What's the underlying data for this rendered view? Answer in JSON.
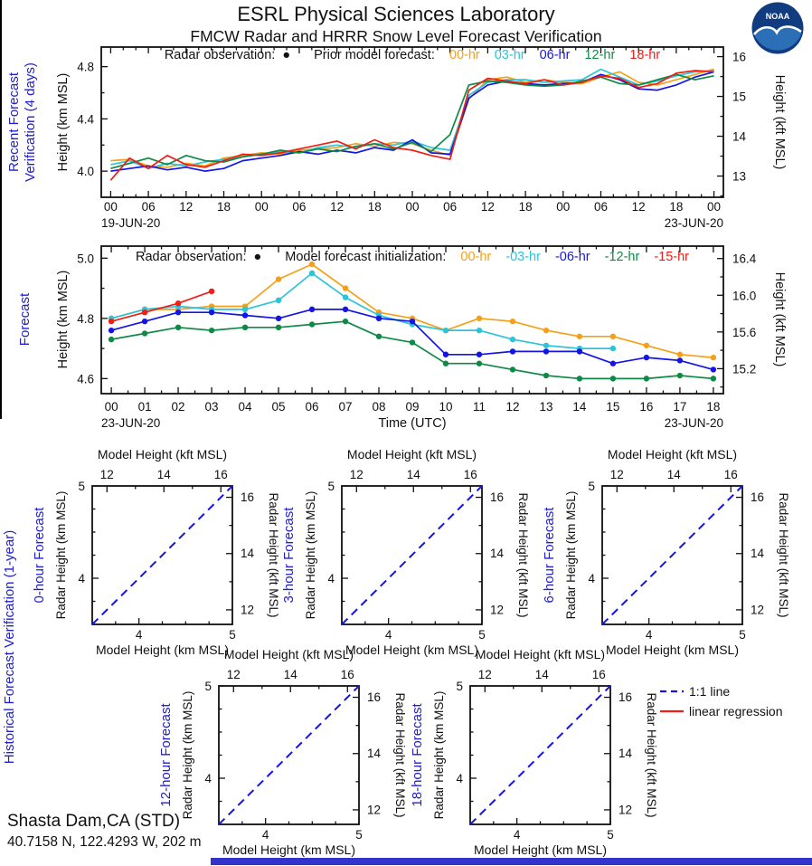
{
  "header": {
    "title": "ESRL Physical Sciences Laboratory",
    "subtitle": "FMCW Radar and HRRR Snow Level Forecast Verification"
  },
  "logo": {
    "text": "NOAA",
    "navy": "#123C80",
    "light_blue": "#2C6FB7"
  },
  "sections": {
    "historical": "Historical Forecast Verification (1-year)"
  },
  "station": {
    "name": "Shasta Dam,CA (STD)",
    "coords": "40.7158 N, 122.4293 W, 202 m"
  },
  "colors": {
    "orange": "#F5A01A",
    "cyan": "#2BC4D8",
    "blue": "#1414E6",
    "green": "#0F8A46",
    "red": "#F01E14",
    "label_blue": "#2020CC"
  },
  "scatter_legend": {
    "items": [
      {
        "label": "1:1 line",
        "color": "#1414E6",
        "dash": true
      },
      {
        "label": "linear regression",
        "color": "#F01E14",
        "dash": false
      }
    ]
  },
  "chart_data": [
    {
      "type": "line",
      "section_label_lines": [
        "Recent Forecast",
        "Verification (4 days)"
      ],
      "ylabel": "Height (km MSL)",
      "right_ylabel": "Height (kft MSL)",
      "ylim": [
        3.8,
        4.95
      ],
      "ytick_vals": [
        4.0,
        4.4,
        4.8
      ],
      "ytick_labels": [
        "4.0",
        "4.4",
        "4.8"
      ],
      "ytick_minor": [
        4.2,
        4.6
      ],
      "right_tick_vals": [
        13,
        14,
        15,
        16
      ],
      "right_tick_labels": [
        "13",
        "14",
        "15",
        "16"
      ],
      "right_tick_minor": [
        12.5,
        13.5,
        14.5,
        15.5
      ],
      "xlim": [
        -1.5,
        97.5
      ],
      "x_major": 6,
      "x_minor": 2,
      "xtick_labels": [
        "00",
        "06",
        "12",
        "18",
        "00",
        "06",
        "12",
        "18",
        "00",
        "06",
        "12",
        "18",
        "00",
        "06",
        "12",
        "18",
        "00"
      ],
      "date_left": "19-JUN-20",
      "date_right": "23-JUN-20",
      "xlabel": "",
      "legend": {
        "obs": "Radar observation:",
        "dot": "●",
        "model": "Prior model forecast:",
        "items": [
          {
            "label": "00-hr",
            "color": "#F5A01A"
          },
          {
            "label": "03-hr",
            "color": "#2BC4D8"
          },
          {
            "label": "06-hr",
            "color": "#1414E6"
          },
          {
            "label": "12-hr",
            "color": "#0F8A46"
          },
          {
            "label": "18-hr",
            "color": "#F01E14"
          }
        ]
      },
      "markers": false,
      "x_start": 0,
      "x_step": 3,
      "series": [
        {
          "name": "00-hr",
          "color": "#F5A01A",
          "values": [
            4.08,
            4.09,
            4.04,
            4.03,
            4.06,
            4.04,
            4.1,
            4.12,
            4.14,
            4.13,
            4.16,
            4.17,
            4.18,
            4.21,
            4.19,
            4.22,
            4.21,
            4.16,
            4.12,
            4.55,
            4.7,
            4.72,
            4.68,
            4.7,
            4.68,
            4.67,
            4.72,
            4.76,
            4.68,
            4.66,
            4.7,
            4.74,
            4.78
          ]
        },
        {
          "name": "03-hr",
          "color": "#2BC4D8",
          "values": [
            4.05,
            4.08,
            4.02,
            4.06,
            4.04,
            4.07,
            4.09,
            4.11,
            4.13,
            4.15,
            4.14,
            4.18,
            4.2,
            4.18,
            4.21,
            4.2,
            4.23,
            4.18,
            4.16,
            4.58,
            4.68,
            4.7,
            4.7,
            4.68,
            4.69,
            4.7,
            4.78,
            4.72,
            4.66,
            4.69,
            4.73,
            4.76,
            4.77
          ]
        },
        {
          "name": "06-hr",
          "color": "#1414E6",
          "values": [
            4.0,
            4.02,
            4.04,
            4.01,
            4.03,
            4.0,
            4.02,
            4.08,
            4.1,
            4.12,
            4.15,
            4.13,
            4.16,
            4.14,
            4.18,
            4.16,
            4.24,
            4.14,
            4.13,
            4.56,
            4.66,
            4.69,
            4.67,
            4.66,
            4.67,
            4.68,
            4.74,
            4.7,
            4.63,
            4.62,
            4.66,
            4.72,
            4.76
          ]
        },
        {
          "name": "12-hr",
          "color": "#0F8A46",
          "values": [
            4.02,
            4.06,
            4.1,
            4.05,
            4.12,
            4.08,
            4.07,
            4.11,
            4.13,
            4.16,
            4.14,
            4.17,
            4.15,
            4.19,
            4.21,
            4.17,
            4.22,
            4.15,
            4.28,
            4.66,
            4.69,
            4.68,
            4.66,
            4.65,
            4.66,
            4.69,
            4.72,
            4.67,
            4.66,
            4.7,
            4.74,
            4.7,
            4.73
          ]
        },
        {
          "name": "18-hr",
          "color": "#F01E14",
          "values": [
            3.93,
            4.1,
            4.02,
            4.12,
            4.05,
            4.03,
            4.08,
            4.13,
            4.12,
            4.14,
            4.17,
            4.2,
            4.23,
            4.17,
            4.24,
            4.18,
            4.16,
            4.12,
            4.09,
            4.62,
            4.71,
            4.69,
            4.67,
            4.7,
            4.66,
            4.68,
            4.73,
            4.71,
            4.64,
            4.67,
            4.75,
            4.77,
            4.76
          ]
        }
      ]
    },
    {
      "type": "line",
      "section_label_lines": [
        "Forecast"
      ],
      "ylabel": "Height (km MSL)",
      "right_ylabel": "Height (kft MSL)",
      "ylim": [
        4.55,
        5.04
      ],
      "ytick_vals": [
        4.6,
        4.8,
        5.0
      ],
      "ytick_labels": [
        "4.6",
        "4.8",
        "5.0"
      ],
      "ytick_minor": [
        4.7,
        4.9
      ],
      "right_tick_vals": [
        15.2,
        15.6,
        16.0,
        16.4
      ],
      "right_tick_labels": [
        "15.2",
        "15.6",
        "16.0",
        "16.4"
      ],
      "right_tick_minor": [
        15.0,
        15.4,
        15.8,
        16.2
      ],
      "xlim": [
        -0.3,
        18.3
      ],
      "x_major": 1,
      "x_minor": 0.5,
      "xtick_labels": [
        "00",
        "01",
        "02",
        "03",
        "04",
        "05",
        "06",
        "07",
        "08",
        "09",
        "10",
        "11",
        "12",
        "13",
        "14",
        "15",
        "16",
        "17",
        "18"
      ],
      "date_left": "23-JUN-20",
      "date_right": "23-JUN-20",
      "xlabel": "Time (UTC)",
      "legend": {
        "obs": "Radar observation:",
        "dot": "●",
        "model": "Model forecast initialization:",
        "items": [
          {
            "label": "00-hr",
            "color": "#F5A01A"
          },
          {
            "label": "-03-hr",
            "color": "#2BC4D8"
          },
          {
            "label": "-06-hr",
            "color": "#1414E6"
          },
          {
            "label": "-12-hr",
            "color": "#0F8A46"
          },
          {
            "label": "-15-hr",
            "color": "#F01E14"
          }
        ]
      },
      "markers": true,
      "x_start": 0,
      "x_step": 1,
      "series": [
        {
          "name": "00-hr",
          "color": "#F5A01A",
          "x": [
            0,
            1,
            2,
            3,
            4,
            5,
            6,
            7,
            8,
            9,
            10,
            11,
            12,
            13,
            14,
            15,
            16,
            17,
            18
          ],
          "values": [
            4.8,
            4.83,
            4.83,
            4.84,
            4.84,
            4.93,
            4.98,
            4.9,
            4.82,
            4.8,
            4.76,
            4.8,
            4.79,
            4.76,
            4.74,
            4.74,
            4.71,
            4.68,
            4.67
          ]
        },
        {
          "name": "-03-hr",
          "color": "#2BC4D8",
          "x": [
            0,
            1,
            2,
            3,
            4,
            5,
            6,
            7,
            8,
            9,
            10,
            11,
            12,
            13,
            14,
            15
          ],
          "values": [
            4.8,
            4.83,
            4.84,
            4.83,
            4.83,
            4.86,
            4.95,
            4.87,
            4.81,
            4.78,
            4.76,
            4.76,
            4.73,
            4.71,
            4.7,
            4.7
          ]
        },
        {
          "name": "-06-hr",
          "color": "#1414E6",
          "x": [
            0,
            1,
            2,
            3,
            4,
            5,
            6,
            7,
            8,
            9,
            10,
            11,
            12,
            13,
            14,
            15,
            16,
            17,
            18
          ],
          "values": [
            4.76,
            4.79,
            4.82,
            4.82,
            4.81,
            4.8,
            4.83,
            4.83,
            4.8,
            4.79,
            4.68,
            4.68,
            4.69,
            4.69,
            4.69,
            4.65,
            4.67,
            4.66,
            4.63
          ]
        },
        {
          "name": "-12-hr",
          "color": "#0F8A46",
          "x": [
            0,
            1,
            2,
            3,
            4,
            5,
            6,
            7,
            8,
            9,
            10,
            11,
            12,
            13,
            14,
            15,
            16,
            17,
            18
          ],
          "values": [
            4.73,
            4.75,
            4.77,
            4.76,
            4.77,
            4.77,
            4.78,
            4.79,
            4.74,
            4.72,
            4.65,
            4.65,
            4.63,
            4.61,
            4.6,
            4.6,
            4.6,
            4.61,
            4.6
          ]
        },
        {
          "name": "-15-hr",
          "color": "#F01E14",
          "x": [
            0,
            1,
            2,
            3
          ],
          "values": [
            4.79,
            4.82,
            4.85,
            4.89
          ]
        }
      ]
    },
    {
      "type": "scatter",
      "title": "0-hour Forecast",
      "xlabel_bottom": "Model Height (km MSL)",
      "xlabel_top": "Model Height (kft MSL)",
      "ylabel_left": "Radar Height (km MSL)",
      "ylabel_right": "Radar Height (kft MSL)",
      "km_range": [
        3.5,
        5
      ],
      "km_tick_vals": [
        4,
        5
      ],
      "km_tick_labels": [
        "4",
        "5"
      ],
      "km_tick_minor": [
        3.75,
        4.25,
        4.5,
        4.75
      ],
      "kft_tick_vals": [
        12,
        14,
        16
      ],
      "kft_tick_labels": [
        "12",
        "14",
        "16"
      ],
      "kft_tick_minor": [
        13,
        15
      ],
      "one_to_one": true,
      "points": []
    },
    {
      "type": "scatter",
      "title": "3-hour Forecast",
      "xlabel_bottom": "Model Height (km MSL)",
      "xlabel_top": "Model Height (kft MSL)",
      "ylabel_left": "Radar Height (km MSL)",
      "ylabel_right": "Radar Height (kft MSL)",
      "km_range": [
        3.5,
        5
      ],
      "km_tick_vals": [
        4,
        5
      ],
      "km_tick_labels": [
        "4",
        "5"
      ],
      "km_tick_minor": [
        3.75,
        4.25,
        4.5,
        4.75
      ],
      "kft_tick_vals": [
        12,
        14,
        16
      ],
      "kft_tick_labels": [
        "12",
        "14",
        "16"
      ],
      "kft_tick_minor": [
        13,
        15
      ],
      "one_to_one": true,
      "points": []
    },
    {
      "type": "scatter",
      "title": "6-hour Forecast",
      "xlabel_bottom": "Model Height (km MSL)",
      "xlabel_top": "Model Height (kft MSL)",
      "ylabel_left": "Radar Height (km MSL)",
      "ylabel_right": "Radar Height (kft MSL)",
      "km_range": [
        3.5,
        5
      ],
      "km_tick_vals": [
        4,
        5
      ],
      "km_tick_labels": [
        "4",
        "5"
      ],
      "km_tick_minor": [
        3.75,
        4.25,
        4.5,
        4.75
      ],
      "kft_tick_vals": [
        12,
        14,
        16
      ],
      "kft_tick_labels": [
        "12",
        "14",
        "16"
      ],
      "kft_tick_minor": [
        13,
        15
      ],
      "one_to_one": true,
      "points": []
    },
    {
      "type": "scatter",
      "title": "12-hour Forecast",
      "xlabel_bottom": "Model Height (km MSL)",
      "xlabel_top": "Model Height (kft MSL)",
      "ylabel_left": "Radar Height (km MSL)",
      "ylabel_right": "Radar Height (kft MSL)",
      "km_range": [
        3.5,
        5
      ],
      "km_tick_vals": [
        4,
        5
      ],
      "km_tick_labels": [
        "4",
        "5"
      ],
      "km_tick_minor": [
        3.75,
        4.25,
        4.5,
        4.75
      ],
      "kft_tick_vals": [
        12,
        14,
        16
      ],
      "kft_tick_labels": [
        "12",
        "14",
        "16"
      ],
      "kft_tick_minor": [
        13,
        15
      ],
      "one_to_one": true,
      "points": []
    },
    {
      "type": "scatter",
      "title": "18-hour Forecast",
      "xlabel_bottom": "Model Height (km MSL)",
      "xlabel_top": "Model Height (kft MSL)",
      "ylabel_left": "Radar Height (km MSL)",
      "ylabel_right": "Radar Height (kft MSL)",
      "km_range": [
        3.5,
        5
      ],
      "km_tick_vals": [
        4,
        5
      ],
      "km_tick_labels": [
        "4",
        "5"
      ],
      "km_tick_minor": [
        3.75,
        4.25,
        4.5,
        4.75
      ],
      "kft_tick_vals": [
        12,
        14,
        16
      ],
      "kft_tick_labels": [
        "12",
        "14",
        "16"
      ],
      "kft_tick_minor": [
        13,
        15
      ],
      "one_to_one": true,
      "points": []
    }
  ]
}
